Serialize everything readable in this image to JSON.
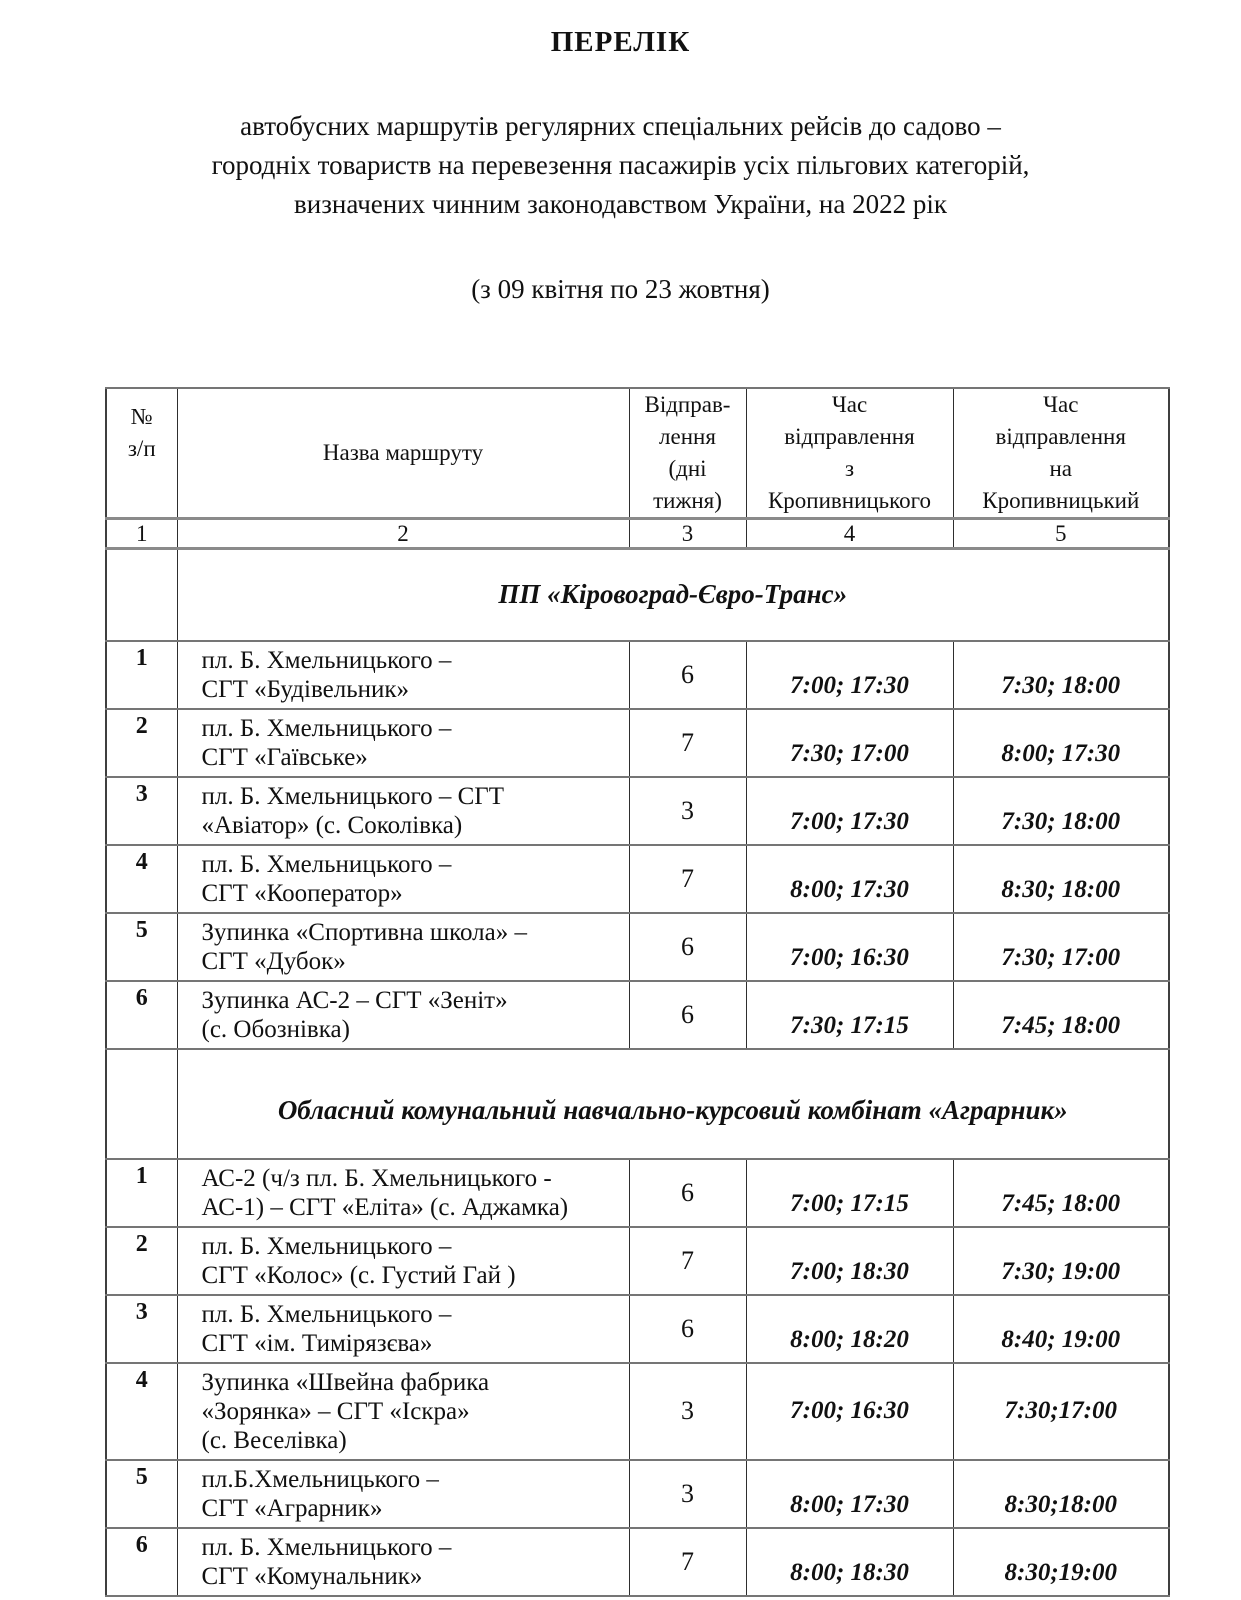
{
  "doc": {
    "title": "ПЕРЕЛІК",
    "intro_lines": [
      "автобусних маршрутів регулярних спеціальних рейсів до садово –",
      "городніх товариств на перевезення пасажирів усіх пільгових категорій,",
      "визначених чинним законодавством України, на 2022 рік"
    ],
    "date_range": "(з 09 квітня по 23 жовтня)"
  },
  "table": {
    "headers": {
      "col1": "№\nз/п",
      "col2": "Назва маршруту",
      "col3": "Відправ-\nлення\n(дні\nтижня)",
      "col4": "Час\nвідправлення\nз\nКропивницького",
      "col5": "Час\nвідправлення\nна\nКропивницький"
    },
    "column_numbers": [
      "1",
      "2",
      "3",
      "4",
      "5"
    ],
    "sections": [
      {
        "name": "ПП «Кіровоград-Євро-Транс»",
        "rows": [
          {
            "num": "1",
            "route_lines": [
              "пл. Б. Хмельницького –",
              "СГТ «Будівельник»"
            ],
            "days": "6",
            "time_from": "7:00; 17:30",
            "time_to": "7:30; 18:00"
          },
          {
            "num": "2",
            "route_lines": [
              "пл. Б. Хмельницького –",
              "СГТ «Гаївське»"
            ],
            "days": "7",
            "time_from": "7:30; 17:00",
            "time_to": "8:00; 17:30"
          },
          {
            "num": "3",
            "route_lines": [
              "пл. Б. Хмельницького – СГТ",
              "«Авіатор» (с. Соколівка)"
            ],
            "days": "3",
            "time_from": "7:00; 17:30",
            "time_to": "7:30; 18:00"
          },
          {
            "num": "4",
            "route_lines": [
              "пл. Б. Хмельницького –",
              "СГТ «Кооператор»"
            ],
            "days": "7",
            "time_from": "8:00; 17:30",
            "time_to": "8:30; 18:00"
          },
          {
            "num": "5",
            "route_lines": [
              "Зупинка «Спортивна школа» –",
              "СГТ «Дубок»"
            ],
            "days": "6",
            "time_from": "7:00; 16:30",
            "time_to": "7:30; 17:00"
          },
          {
            "num": "6",
            "route_lines": [
              "Зупинка АС-2 – СГТ «Зеніт»",
              "(с. Обознівка)"
            ],
            "days": "6",
            "time_from": "7:30; 17:15",
            "time_to": "7:45; 18:00"
          }
        ]
      },
      {
        "name": "Обласний комунальний навчально-курсовий комбінат «Аграрник»",
        "rows": [
          {
            "num": "1",
            "route_lines": [
              "АС-2 (ч/з пл. Б. Хмельницького -",
              "АС-1) – СГТ «Еліта» (с. Аджамка)"
            ],
            "days": "6",
            "time_from": "7:00; 17:15",
            "time_to": "7:45; 18:00"
          },
          {
            "num": "2",
            "route_lines": [
              "пл. Б. Хмельницького –",
              "СГТ «Колос» (с. Густий Гай )"
            ],
            "days": "7",
            "time_from": "7:00; 18:30",
            "time_to": "7:30; 19:00"
          },
          {
            "num": "3",
            "route_lines": [
              "пл. Б. Хмельницького –",
              "СГТ «ім. Тимірязєва»"
            ],
            "days": "6",
            "time_from": "8:00; 18:20",
            "time_to": "8:40; 19:00"
          },
          {
            "num": "4",
            "route_lines": [
              "Зупинка «Швейна фабрика",
              "«Зорянка» – СГТ «Іскра»",
              " (с. Веселівка)"
            ],
            "days": "3",
            "time_from": "7:00; 16:30",
            "time_to": "7:30;17:00"
          },
          {
            "num": "5",
            "route_lines": [
              "пл.Б.Хмельницького –",
              "СГТ «Аграрник»"
            ],
            "days": "3",
            "time_from": "8:00; 17:30",
            "time_to": "8:30;18:00"
          },
          {
            "num": "6",
            "route_lines": [
              "пл. Б. Хмельницького –",
              "СГТ «Комунальник»"
            ],
            "days": "7",
            "time_from": "8:00; 18:30",
            "time_to": "8:30;19:00"
          }
        ]
      }
    ]
  }
}
